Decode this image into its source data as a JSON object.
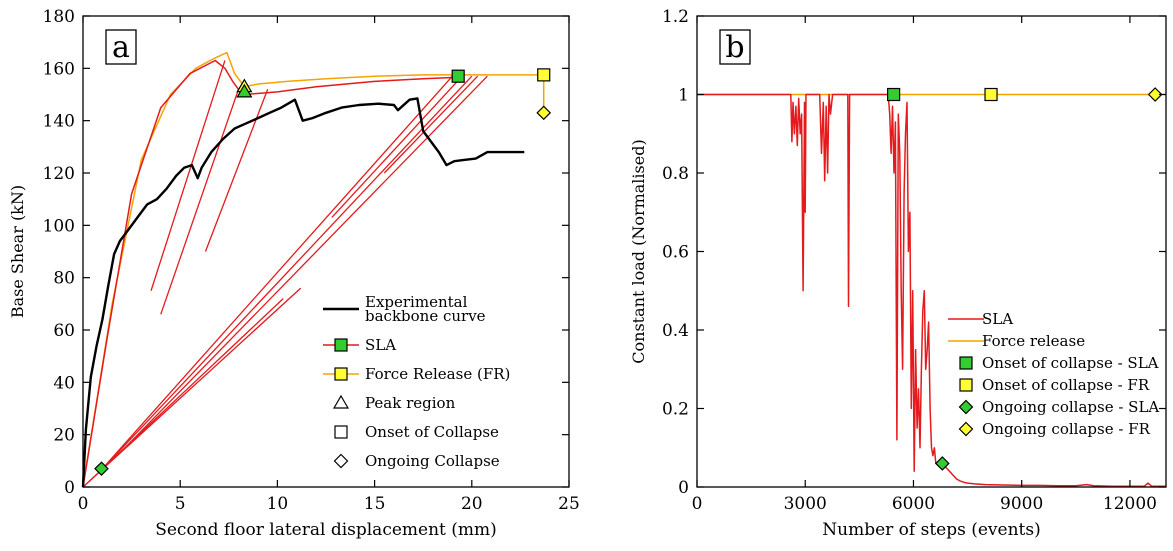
{
  "chart_data": [
    {
      "panel_label": "a",
      "type": "line",
      "xlabel": "Second floor lateral displacement (mm)",
      "ylabel": "Base Shear (kN)",
      "xlim": [
        0,
        25
      ],
      "ylim": [
        0,
        180
      ],
      "xticks": [
        0,
        5,
        10,
        15,
        20,
        25
      ],
      "yticks": [
        0,
        20,
        40,
        60,
        80,
        100,
        120,
        140,
        160,
        180
      ],
      "grid": false,
      "legend_position": "lower-right",
      "legend": [
        {
          "label": "Experimental backbone curve",
          "key": "exp",
          "lines": [
            "Experimental",
            "backbone curve"
          ]
        },
        {
          "label": "SLA",
          "key": "sla"
        },
        {
          "label": "Force Release (FR)",
          "key": "fr"
        },
        {
          "label": "Peak region",
          "key": "peak"
        },
        {
          "label": "Onset of Collapse",
          "key": "onset"
        },
        {
          "label": "Ongoing Collapse",
          "key": "ongoing"
        }
      ],
      "series": [
        {
          "name": "Experimental backbone curve",
          "key": "exp",
          "color": "#000000",
          "x": [
            0,
            0.15,
            0.4,
            0.7,
            1.0,
            1.3,
            1.6,
            1.9,
            2.3,
            2.8,
            3.3,
            3.8,
            4.3,
            4.8,
            5.2,
            5.6,
            5.9,
            6.1,
            6.6,
            7.2,
            7.8,
            8.4,
            9.0,
            9.6,
            10.2,
            10.9,
            11.3,
            11.8,
            12.5,
            13.3,
            14.2,
            15.2,
            16.0,
            16.2,
            16.8,
            17.2,
            17.5,
            17.9,
            18.3,
            18.7,
            19.1,
            19.6,
            20.2,
            20.8,
            21.6,
            22.2,
            22.7
          ],
          "y": [
            0,
            22,
            42,
            54,
            64,
            77,
            89,
            94,
            98,
            103,
            108,
            110,
            114,
            119,
            122,
            123,
            118,
            122,
            128,
            133,
            137,
            139,
            141,
            143,
            145,
            148,
            140,
            141,
            143,
            145,
            146,
            146.5,
            146,
            144,
            148,
            148.5,
            136,
            132,
            128,
            123,
            124.5,
            125,
            125.5,
            128,
            128,
            128,
            128
          ]
        },
        {
          "name": "SLA",
          "key": "sla",
          "color": "#e41a1c",
          "x": [
            0,
            1.2,
            2.5,
            4.0,
            5.5,
            6.8,
            7.3,
            7.7,
            8.0,
            8.3,
            10.0,
            12.0,
            15.0,
            17.5,
            19.0,
            19.3
          ],
          "y": [
            0,
            55,
            112,
            145,
            158,
            163,
            160,
            155,
            152,
            150,
            151,
            153,
            155,
            156,
            156.5,
            157
          ]
        },
        {
          "name": "Force Release (FR)",
          "key": "fr",
          "color": "#f5a300",
          "x": [
            0,
            1.5,
            3.0,
            4.5,
            5.8,
            6.8,
            7.4,
            7.8,
            8.3,
            9.0,
            10.5,
            12.5,
            15.0,
            17.5,
            20.0,
            22.0,
            23.7,
            23.7
          ],
          "y": [
            0,
            70,
            125,
            150,
            160,
            164,
            166,
            158,
            153,
            154,
            155,
            156,
            157,
            157.5,
            157.5,
            157.5,
            157.5,
            143
          ]
        }
      ],
      "sla_cycles": [
        {
          "from": [
            0,
            0
          ],
          "to": [
            11.2,
            76
          ]
        },
        {
          "from": [
            0.3,
            2
          ],
          "to": [
            10.3,
            72
          ]
        },
        {
          "from": [
            1.0,
            7
          ],
          "to": [
            19.0,
            157
          ]
        },
        {
          "from": [
            1.4,
            10
          ],
          "to": [
            20.0,
            157
          ]
        },
        {
          "from": [
            1.9,
            13
          ],
          "to": [
            20.8,
            157
          ]
        },
        {
          "from": [
            12.8,
            103
          ],
          "to": [
            19.5,
            157
          ]
        },
        {
          "from": [
            15.5,
            120
          ],
          "to": [
            20.3,
            157
          ]
        },
        {
          "from": [
            3.5,
            75
          ],
          "to": [
            7.3,
            163
          ]
        },
        {
          "from": [
            4.0,
            66
          ],
          "to": [
            8.0,
            152
          ]
        },
        {
          "from": [
            6.3,
            90
          ],
          "to": [
            9.5,
            152
          ]
        }
      ],
      "markers": [
        {
          "label": "Peak region",
          "key": "peak",
          "x": 8.3,
          "y": 153,
          "shape": "triangle",
          "fill": "#ffff33"
        },
        {
          "label": "Peak region",
          "key": "peak",
          "x": 8.3,
          "y": 151,
          "shape": "triangle",
          "fill": "#33cc33"
        },
        {
          "label": "Onset of Collapse",
          "key": "onset",
          "x": 19.3,
          "y": 157,
          "shape": "square",
          "fill": "#33cc33"
        },
        {
          "label": "Onset of Collapse",
          "key": "onset",
          "x": 23.7,
          "y": 157.5,
          "shape": "square",
          "fill": "#ffff33"
        },
        {
          "label": "Ongoing Collapse",
          "key": "ongoing",
          "x": 23.7,
          "y": 143,
          "shape": "diamond",
          "fill": "#ffff33"
        },
        {
          "label": "Ongoing Collapse",
          "key": "ongoing",
          "x": 0.95,
          "y": 7,
          "shape": "diamond",
          "fill": "#33cc33"
        }
      ]
    },
    {
      "panel_label": "b",
      "type": "line",
      "xlabel": "Number of steps (events)",
      "ylabel": "Constant load (Normalised)",
      "xlim": [
        0,
        13000
      ],
      "ylim": [
        0,
        1.2
      ],
      "xticks": [
        0,
        3000,
        6000,
        9000,
        12000
      ],
      "yticks": [
        0,
        0.2,
        0.4,
        0.6,
        0.8,
        1,
        1.2
      ],
      "ytick_labels": [
        "0",
        "0.2",
        "0.4",
        "0.6",
        "0.8",
        "1",
        "1.2"
      ],
      "grid": false,
      "legend_position": "lower-right",
      "legend": [
        {
          "label": "SLA",
          "key": "sla"
        },
        {
          "label": "Force release",
          "key": "fr"
        },
        {
          "label": "Onset of collapse - SLA",
          "key": "onset_sla"
        },
        {
          "label": "Onset of collapse - FR",
          "key": "onset_fr"
        },
        {
          "label": "Ongoing collapse - SLA",
          "key": "ongoing_sla"
        },
        {
          "label": "Ongoing collapse - FR",
          "key": "ongoing_fr"
        }
      ],
      "series": [
        {
          "name": "Force release",
          "key": "fr",
          "color": "#f5a300",
          "x": [
            0,
            13000
          ],
          "y": [
            1,
            1
          ]
        },
        {
          "name": "SLA",
          "key": "sla",
          "color": "#e41a1c",
          "x": [
            0,
            2600,
            2630,
            2660,
            2700,
            2740,
            2780,
            2820,
            2860,
            2900,
            2940,
            2980,
            3000,
            3020,
            3060,
            3100,
            3150,
            3400,
            3450,
            3500,
            3540,
            3580,
            3620,
            3660,
            3700,
            3760,
            4180,
            4200,
            4230,
            4260,
            5300,
            5340,
            5380,
            5420,
            5460,
            5500,
            5540,
            5580,
            5620,
            5660,
            5700,
            5740,
            5780,
            5820,
            5860,
            5900,
            5940,
            5980,
            6020,
            6060,
            6100,
            6140,
            6180,
            6220,
            6260,
            6300,
            6340,
            6380,
            6420,
            6460,
            6500,
            6540,
            6580,
            6620,
            6660,
            6700,
            6800,
            6900,
            7000,
            7100,
            7200,
            7300,
            7400,
            7500,
            7700,
            8000,
            8500,
            9000,
            9500,
            10000,
            10500,
            10800,
            11000,
            11500,
            12000,
            12400,
            12500,
            12600,
            13000
          ],
          "y": [
            1,
            1,
            0.88,
            0.98,
            0.9,
            0.97,
            0.87,
            0.99,
            0.9,
            0.95,
            0.5,
            0.98,
            0.7,
            1,
            1,
            1,
            1,
            1,
            0.85,
            0.98,
            0.78,
            0.97,
            0.8,
            1,
            0.95,
            1,
            1,
            0.46,
            1,
            1,
            1,
            0.95,
            0.85,
            0.97,
            0.8,
            0.93,
            0.12,
            0.95,
            0.85,
            0.5,
            0.3,
            0.75,
            0.9,
            0.98,
            0.6,
            0.7,
            0.2,
            0.5,
            0.04,
            0.35,
            0.15,
            0.25,
            0.1,
            0.3,
            0.45,
            0.5,
            0.3,
            0.35,
            0.42,
            0.2,
            0.1,
            0.08,
            0.1,
            0.06,
            0.06,
            0.06,
            0.055,
            0.05,
            0.04,
            0.03,
            0.02,
            0.015,
            0.012,
            0.01,
            0.008,
            0.006,
            0.005,
            0.004,
            0.004,
            0.003,
            0.003,
            0.006,
            0.003,
            0.002,
            0.002,
            0.002,
            0.01,
            0.002,
            0.002
          ]
        }
      ],
      "markers": [
        {
          "label": "Onset of collapse - SLA",
          "key": "onset_sla",
          "x": 5450,
          "y": 1,
          "shape": "square",
          "fill": "#33cc33"
        },
        {
          "label": "Onset of collapse - FR",
          "key": "onset_fr",
          "x": 8150,
          "y": 1,
          "shape": "square",
          "fill": "#ffff33"
        },
        {
          "label": "Ongoing collapse - SLA",
          "key": "ongoing_sla",
          "x": 6800,
          "y": 0.06,
          "shape": "diamond",
          "fill": "#33cc33"
        },
        {
          "label": "Ongoing collapse - FR",
          "key": "ongoing_fr",
          "x": 12700,
          "y": 1,
          "shape": "diamond",
          "fill": "#ffff33"
        }
      ]
    }
  ]
}
